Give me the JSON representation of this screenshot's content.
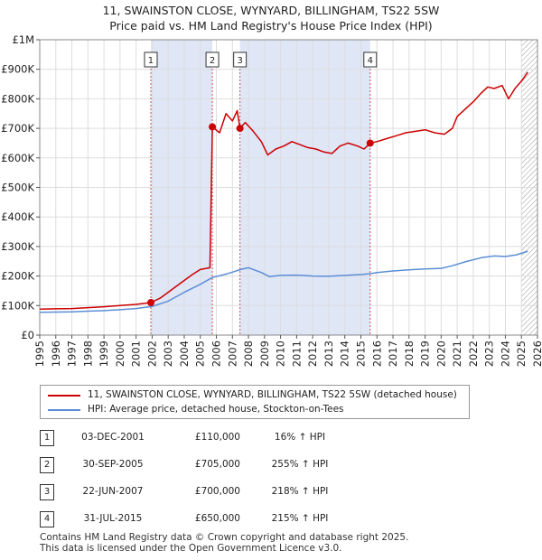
{
  "chart_data": {
    "type": "line",
    "title": "11, SWAINSTON CLOSE, WYNYARD, BILLINGHAM, TS22 5SW",
    "subtitle": "Price paid vs. HM Land Registry's House Price Index (HPI)",
    "xlim": [
      1995,
      2026
    ],
    "ylim": [
      0,
      1000000
    ],
    "x_ticks": [
      "1995",
      "1996",
      "1997",
      "1998",
      "1999",
      "2000",
      "2001",
      "2002",
      "2003",
      "2004",
      "2005",
      "2006",
      "2007",
      "2008",
      "2009",
      "2010",
      "2011",
      "2012",
      "2013",
      "2014",
      "2015",
      "2016",
      "2017",
      "2018",
      "2019",
      "2020",
      "2021",
      "2022",
      "2023",
      "2024",
      "2025",
      "2026"
    ],
    "y_ticks": [
      {
        "value": 0,
        "label": "£0"
      },
      {
        "value": 100000,
        "label": "£100K"
      },
      {
        "value": 200000,
        "label": "£200K"
      },
      {
        "value": 300000,
        "label": "£300K"
      },
      {
        "value": 400000,
        "label": "£400K"
      },
      {
        "value": 500000,
        "label": "£500K"
      },
      {
        "value": 600000,
        "label": "£600K"
      },
      {
        "value": 700000,
        "label": "£700K"
      },
      {
        "value": 800000,
        "label": "£800K"
      },
      {
        "value": 900000,
        "label": "£900K"
      },
      {
        "value": 1000000,
        "label": "£1M"
      }
    ],
    "series": [
      {
        "name": "11, SWAINSTON CLOSE, WYNYARD, BILLINGHAM, TS22 5SW (detached house)",
        "color": "#cc0000",
        "points": [
          [
            1995,
            88000
          ],
          [
            1996,
            89000
          ],
          [
            1997,
            90000
          ],
          [
            1998,
            93000
          ],
          [
            1999,
            96000
          ],
          [
            2000,
            100000
          ],
          [
            2001,
            104000
          ],
          [
            2001.92,
            110000
          ],
          [
            2002.5,
            125000
          ],
          [
            2003,
            145000
          ],
          [
            2003.5,
            165000
          ],
          [
            2004,
            185000
          ],
          [
            2004.5,
            205000
          ],
          [
            2005,
            222000
          ],
          [
            2005.6,
            228000
          ],
          [
            2005.75,
            705000
          ],
          [
            2006.2,
            685000
          ],
          [
            2006.6,
            750000
          ],
          [
            2007.0,
            725000
          ],
          [
            2007.3,
            760000
          ],
          [
            2007.47,
            700000
          ],
          [
            2007.8,
            720000
          ],
          [
            2008.3,
            690000
          ],
          [
            2008.8,
            655000
          ],
          [
            2009.2,
            610000
          ],
          [
            2009.7,
            630000
          ],
          [
            2010.2,
            640000
          ],
          [
            2010.7,
            655000
          ],
          [
            2011.2,
            645000
          ],
          [
            2011.7,
            635000
          ],
          [
            2012.2,
            630000
          ],
          [
            2012.7,
            620000
          ],
          [
            2013.2,
            615000
          ],
          [
            2013.7,
            640000
          ],
          [
            2014.2,
            650000
          ],
          [
            2014.8,
            640000
          ],
          [
            2015.2,
            630000
          ],
          [
            2015.58,
            650000
          ],
          [
            2016.0,
            655000
          ],
          [
            2016.6,
            665000
          ],
          [
            2017.2,
            675000
          ],
          [
            2017.8,
            685000
          ],
          [
            2018.4,
            690000
          ],
          [
            2019.0,
            695000
          ],
          [
            2019.6,
            685000
          ],
          [
            2020.2,
            680000
          ],
          [
            2020.7,
            700000
          ],
          [
            2021.0,
            740000
          ],
          [
            2021.5,
            765000
          ],
          [
            2022.0,
            790000
          ],
          [
            2022.5,
            820000
          ],
          [
            2022.9,
            840000
          ],
          [
            2023.3,
            835000
          ],
          [
            2023.8,
            845000
          ],
          [
            2024.2,
            800000
          ],
          [
            2024.6,
            835000
          ],
          [
            2025.0,
            860000
          ],
          [
            2025.4,
            890000
          ]
        ]
      },
      {
        "name": "HPI: Average price, detached house, Stockton-on-Tees",
        "color": "#5b8ed6",
        "points": [
          [
            1995,
            77000
          ],
          [
            1996,
            78000
          ],
          [
            1997,
            79000
          ],
          [
            1998,
            81000
          ],
          [
            1999,
            83000
          ],
          [
            2000,
            86000
          ],
          [
            2001,
            90000
          ],
          [
            2002,
            97000
          ],
          [
            2003,
            115000
          ],
          [
            2004,
            145000
          ],
          [
            2005,
            172000
          ],
          [
            2005.75,
            195000
          ],
          [
            2006.5,
            205000
          ],
          [
            2007.0,
            213000
          ],
          [
            2007.5,
            222000
          ],
          [
            2008.0,
            228000
          ],
          [
            2008.8,
            212000
          ],
          [
            2009.3,
            198000
          ],
          [
            2010,
            202000
          ],
          [
            2011,
            203000
          ],
          [
            2012,
            200000
          ],
          [
            2013,
            199000
          ],
          [
            2014,
            202000
          ],
          [
            2015,
            205000
          ],
          [
            2015.58,
            208000
          ],
          [
            2016,
            212000
          ],
          [
            2017,
            217000
          ],
          [
            2018,
            221000
          ],
          [
            2019,
            224000
          ],
          [
            2020,
            226000
          ],
          [
            2020.7,
            235000
          ],
          [
            2021.5,
            248000
          ],
          [
            2022.5,
            262000
          ],
          [
            2023.3,
            268000
          ],
          [
            2024,
            266000
          ],
          [
            2024.7,
            272000
          ],
          [
            2025.4,
            284000
          ]
        ]
      }
    ],
    "sales": [
      {
        "id": "1",
        "date": "03-DEC-2001",
        "price": "£110,000",
        "hpi": "16% ↑ HPI",
        "x": 2001.92,
        "y": 110000
      },
      {
        "id": "2",
        "date": "30-SEP-2005",
        "price": "£705,000",
        "hpi": "255% ↑ HPI",
        "x": 2005.75,
        "y": 705000
      },
      {
        "id": "3",
        "date": "22-JUN-2007",
        "price": "£700,000",
        "hpi": "218% ↑ HPI",
        "x": 2007.47,
        "y": 700000
      },
      {
        "id": "4",
        "date": "31-JUL-2015",
        "price": "£650,000",
        "hpi": "215% ↑ HPI",
        "x": 2015.58,
        "y": 650000
      }
    ],
    "shaded_periods": [
      [
        2001.92,
        2005.75
      ],
      [
        2007.47,
        2015.58
      ]
    ],
    "hatched_from": 2025.0,
    "grid": true,
    "legend_position": "bottom"
  },
  "legend": [
    {
      "label": "11, SWAINSTON CLOSE, WYNYARD, BILLINGHAM, TS22 5SW (detached house)",
      "color": "#cc0000"
    },
    {
      "label": "HPI: Average price, detached house, Stockton-on-Tees",
      "color": "#5b8ed6"
    }
  ],
  "footer": {
    "line1": "Contains HM Land Registry data © Crown copyright and database right 2025.",
    "line2": "This data is licensed under the Open Government Licence v3.0."
  }
}
